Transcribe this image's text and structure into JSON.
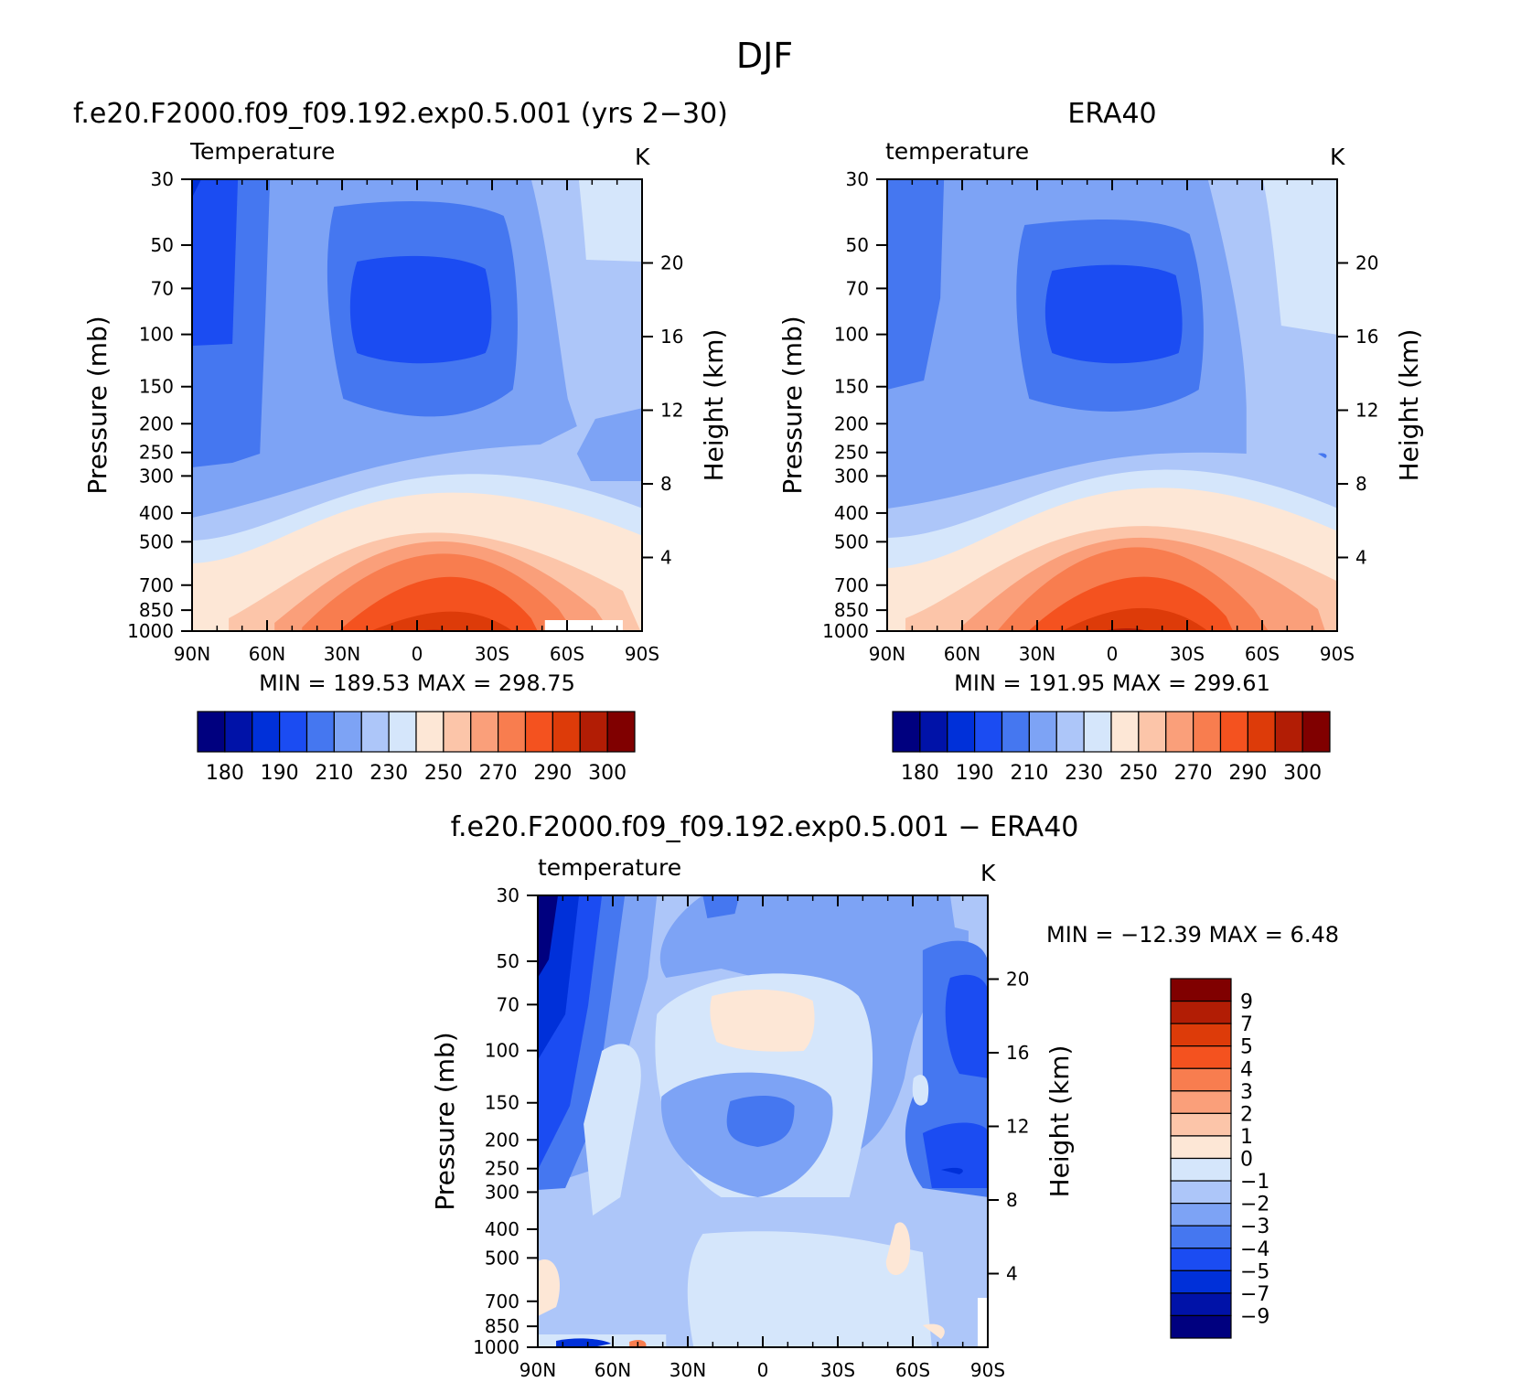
{
  "figure": {
    "title": "DJF"
  },
  "colorbar_main": {
    "colors": [
      "#00007f",
      "#0012a8",
      "#0030d9",
      "#1b4cf2",
      "#4577f0",
      "#7da3f5",
      "#adc6f9",
      "#d5e6fb",
      "#fde7d6",
      "#fcc5a9",
      "#fa9f7a",
      "#f87d4f",
      "#f4521f",
      "#dd3b09",
      "#b21d05",
      "#800000"
    ],
    "tick_labels": [
      "180",
      "190",
      "210",
      "230",
      "250",
      "270",
      "290",
      "300"
    ],
    "tick_after_box": [
      0,
      2,
      4,
      6,
      8,
      10,
      12,
      14
    ]
  },
  "colorbar_diff": {
    "colors": [
      "#00007f",
      "#0012a8",
      "#0030d9",
      "#1b4cf2",
      "#4577f0",
      "#7da3f5",
      "#adc6f9",
      "#d5e6fb",
      "#fde7d6",
      "#fcc5a9",
      "#fa9f7a",
      "#f87d4f",
      "#f4521f",
      "#dd3b09",
      "#b21d05",
      "#800000"
    ],
    "tick_labels": [
      "9",
      "7",
      "5",
      "4",
      "3",
      "2",
      "1",
      "0",
      "−1",
      "−2",
      "−3",
      "−4",
      "−5",
      "−7",
      "−9"
    ]
  },
  "chart_data": [
    {
      "type": "heatmap",
      "panel_title": "f.e20.F2000.f09_f09.192.exp0.5.001 (yrs 2−30)",
      "left_label": "Temperature",
      "unit_label": "K",
      "ylabel": "Pressure (mb)",
      "y2label": "Height (km)",
      "x_ticks": [
        "90N",
        "60N",
        "30N",
        "0",
        "30S",
        "60S",
        "90S"
      ],
      "y_ticks": [
        "30",
        "50",
        "70",
        "100",
        "150",
        "200",
        "250",
        "300",
        "400",
        "500",
        "700",
        "850",
        "1000"
      ],
      "y2_ticks": [
        "20",
        "16",
        "12",
        "8",
        "4"
      ],
      "stats": {
        "min_label": "MIN",
        "min": "189.53",
        "max_label": "MAX",
        "max": "298.75"
      },
      "levels": [
        180,
        190,
        200,
        210,
        220,
        230,
        240,
        250,
        260,
        270,
        280,
        290,
        300,
        310
      ]
    },
    {
      "type": "heatmap",
      "panel_title": "ERA40",
      "left_label": "temperature",
      "unit_label": "K",
      "ylabel": "Pressure (mb)",
      "y2label": "Height (km)",
      "x_ticks": [
        "90N",
        "60N",
        "30N",
        "0",
        "30S",
        "60S",
        "90S"
      ],
      "y_ticks": [
        "30",
        "50",
        "70",
        "100",
        "150",
        "200",
        "250",
        "300",
        "400",
        "500",
        "700",
        "850",
        "1000"
      ],
      "y2_ticks": [
        "20",
        "16",
        "12",
        "8",
        "4"
      ],
      "stats": {
        "min_label": "MIN",
        "min": "191.95",
        "max_label": "MAX",
        "max": "299.61"
      },
      "levels": [
        180,
        190,
        200,
        210,
        220,
        230,
        240,
        250,
        260,
        270,
        280,
        290,
        300,
        310
      ]
    },
    {
      "type": "heatmap",
      "panel_title": "f.e20.F2000.f09_f09.192.exp0.5.001 − ERA40",
      "left_label": "temperature",
      "unit_label": "K",
      "ylabel": "Pressure (mb)",
      "y2label": "Height (km)",
      "x_ticks": [
        "90N",
        "60N",
        "30N",
        "0",
        "30S",
        "60S",
        "90S"
      ],
      "y_ticks": [
        "30",
        "50",
        "70",
        "100",
        "150",
        "200",
        "250",
        "300",
        "400",
        "500",
        "700",
        "850",
        "1000"
      ],
      "y2_ticks": [
        "20",
        "16",
        "12",
        "8",
        "4"
      ],
      "stats": {
        "min_label": "MIN",
        "min": "−12.39",
        "max_label": "MAX",
        "max": "6.48"
      },
      "levels": [
        -9,
        -7,
        -5,
        -4,
        -3,
        -2,
        -1,
        0,
        1,
        2,
        3,
        4,
        5,
        7,
        9
      ]
    }
  ]
}
